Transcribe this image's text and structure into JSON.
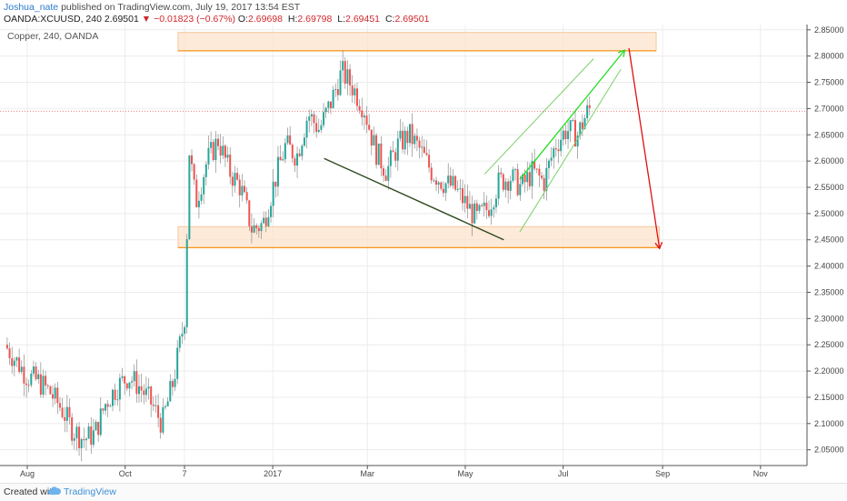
{
  "header": {
    "user": "Joshua_nate",
    "published": "published on TradingView.com, July 19, 2017 13:54 EST",
    "symbol_line": "OANDA:XCUUSD, 240",
    "last": "2.69501",
    "change_arrow": "▼",
    "change": "−0.01823 (−0.67%)",
    "o_label": "O:",
    "o": "2.69698",
    "h_label": "H:",
    "h": "2.69798",
    "l_label": "L:",
    "l": "2.69451",
    "c_label": "C:",
    "c": "2.69501"
  },
  "legend": "Copper, 240, OANDA",
  "footer": {
    "created": "Created with",
    "brand": "TradingView",
    "logo": "tradingview-cloud-icon"
  },
  "colors": {
    "up": "#26a69a",
    "down": "#ef5350",
    "zone": "#f7941d",
    "drawn_green": "#22dd22",
    "drawn_red": "#dd1111",
    "grid": "#ececec"
  },
  "chart_data": {
    "type": "candlestick",
    "symbol": "OANDA:XCUUSD",
    "legend": "Copper, 240, OANDA",
    "timeframe": "240",
    "ylim": [
      2.02,
      2.86
    ],
    "y_ticks": [
      "2.85000",
      "2.80000",
      "2.75000",
      "2.70000",
      "2.65000",
      "2.60000",
      "2.55000",
      "2.50000",
      "2.45000",
      "2.40000",
      "2.35000",
      "2.30000",
      "2.25000",
      "2.20000",
      "2.15000",
      "2.10000",
      "2.05000"
    ],
    "y_tick_values": [
      2.85,
      2.8,
      2.75,
      2.7,
      2.65,
      2.6,
      2.55,
      2.5,
      2.45,
      2.4,
      2.35,
      2.3,
      2.25,
      2.2,
      2.15,
      2.1,
      2.05
    ],
    "x_ticks": [
      "Aug",
      "Oct",
      "7",
      "2017",
      "Mar",
      "May",
      "Jul",
      "Sep",
      "Nov"
    ],
    "x_tick_dates": [
      "2016-08-01",
      "2016-10-01",
      "2016-11-07",
      "2017-01-01",
      "2017-03-01",
      "2017-05-01",
      "2017-07-01",
      "2017-09-01",
      "2017-11-01"
    ],
    "current_price": 2.69501,
    "price_path": [
      [
        "2016-07-18",
        2.25
      ],
      [
        "2016-07-25",
        2.22
      ],
      [
        "2016-08-01",
        2.19
      ],
      [
        "2016-08-08",
        2.18
      ],
      [
        "2016-08-15",
        2.16
      ],
      [
        "2016-08-22",
        2.13
      ],
      [
        "2016-08-29",
        2.09
      ],
      [
        "2016-09-05",
        2.07
      ],
      [
        "2016-09-12",
        2.08
      ],
      [
        "2016-09-19",
        2.14
      ],
      [
        "2016-09-26",
        2.17
      ],
      [
        "2016-10-03",
        2.19
      ],
      [
        "2016-10-10",
        2.17
      ],
      [
        "2016-10-17",
        2.14
      ],
      [
        "2016-10-24",
        2.1
      ],
      [
        "2016-10-31",
        2.18
      ],
      [
        "2016-11-07",
        2.3
      ],
      [
        "2016-11-10",
        2.62
      ],
      [
        "2016-11-14",
        2.52
      ],
      [
        "2016-11-21",
        2.6
      ],
      [
        "2016-11-28",
        2.64
      ],
      [
        "2016-12-05",
        2.58
      ],
      [
        "2016-12-12",
        2.55
      ],
      [
        "2016-12-19",
        2.47
      ],
      [
        "2016-12-26",
        2.48
      ],
      [
        "2017-01-02",
        2.56
      ],
      [
        "2017-01-09",
        2.63
      ],
      [
        "2017-01-16",
        2.61
      ],
      [
        "2017-01-23",
        2.69
      ],
      [
        "2017-01-30",
        2.66
      ],
      [
        "2017-02-06",
        2.71
      ],
      [
        "2017-02-13",
        2.77
      ],
      [
        "2017-02-20",
        2.74
      ],
      [
        "2017-02-27",
        2.7
      ],
      [
        "2017-03-06",
        2.62
      ],
      [
        "2017-03-13",
        2.58
      ],
      [
        "2017-03-20",
        2.63
      ],
      [
        "2017-03-27",
        2.65
      ],
      [
        "2017-04-03",
        2.62
      ],
      [
        "2017-04-10",
        2.58
      ],
      [
        "2017-04-17",
        2.56
      ],
      [
        "2017-04-24",
        2.55
      ],
      [
        "2017-05-01",
        2.52
      ],
      [
        "2017-05-08",
        2.49
      ],
      [
        "2017-05-15",
        2.51
      ],
      [
        "2017-05-22",
        2.56
      ],
      [
        "2017-05-29",
        2.57
      ],
      [
        "2017-06-05",
        2.55
      ],
      [
        "2017-06-12",
        2.58
      ],
      [
        "2017-06-19",
        2.56
      ],
      [
        "2017-06-26",
        2.63
      ],
      [
        "2017-07-03",
        2.66
      ],
      [
        "2017-07-10",
        2.65
      ],
      [
        "2017-07-17",
        2.7
      ],
      [
        "2017-07-19",
        2.695
      ]
    ],
    "drawings": {
      "resistance_zone": {
        "y": [
          2.81,
          2.845
        ],
        "x": [
          "2016-11-03",
          "2017-08-28"
        ]
      },
      "support_zone": {
        "y": [
          2.435,
          2.475
        ],
        "x": [
          "2016-11-03",
          "2017-08-30"
        ]
      },
      "down_trendline": {
        "from": [
          "2017-02-02",
          2.605
        ],
        "to": [
          "2017-05-25",
          2.45
        ]
      },
      "channel_upper": {
        "from": [
          "2017-05-13",
          2.575
        ],
        "to": [
          "2017-07-20",
          2.795
        ]
      },
      "channel_lower": {
        "from": [
          "2017-06-04",
          2.465
        ],
        "to": [
          "2017-08-06",
          2.775
        ]
      },
      "green_arrow": {
        "from": [
          "2017-06-04",
          2.565
        ],
        "to": [
          "2017-08-08",
          2.81
        ]
      },
      "red_arrow": {
        "from": [
          "2017-08-11",
          2.815
        ],
        "to": [
          "2017-08-30",
          2.435
        ]
      }
    }
  }
}
